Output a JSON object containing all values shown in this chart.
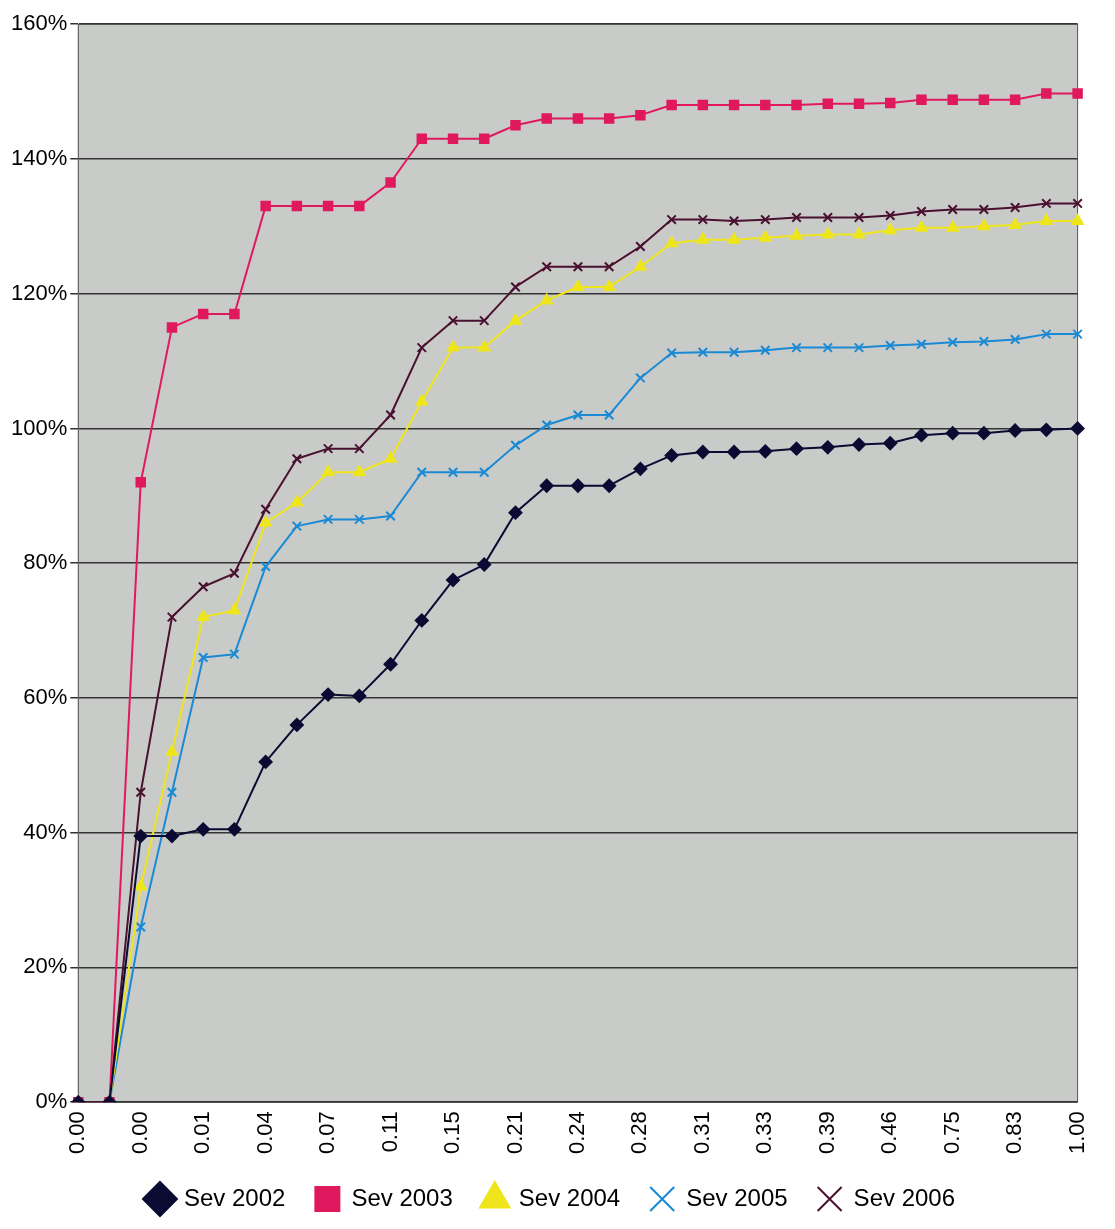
{
  "chart_data": {
    "type": "line",
    "categories": [
      "0.00",
      null,
      "0.00",
      null,
      "0.01",
      null,
      "0.04",
      null,
      "0.07",
      null,
      "0.11",
      null,
      "0.15",
      null,
      "0.21",
      null,
      "0.24",
      null,
      "0.28",
      null,
      "0.31",
      null,
      "0.33",
      null,
      "0.39",
      null,
      "0.46",
      null,
      "0.75",
      null,
      "0.83",
      null,
      "1.00"
    ],
    "series": [
      {
        "name": "Sev 2002",
        "color": "#0a0a33",
        "marker": "diamond",
        "values": [
          0,
          0,
          39.5,
          39.5,
          40.5,
          40.5,
          50.5,
          56,
          60.5,
          60.3,
          65,
          71.5,
          77.5,
          79.8,
          87.5,
          91.5,
          91.5,
          91.5,
          94,
          96,
          96.5,
          96.5,
          96.6,
          97,
          97.2,
          97.6,
          97.8,
          99,
          99.3,
          99.3,
          99.7,
          99.8,
          100
        ]
      },
      {
        "name": "Sev 2003",
        "color": "#e0195f",
        "marker": "square",
        "values": [
          0,
          0,
          92,
          115,
          117,
          117,
          133,
          133,
          133,
          133,
          136.5,
          143,
          143,
          143,
          145,
          146,
          146,
          146,
          146.5,
          148,
          148,
          148,
          148,
          148,
          148.2,
          148.2,
          148.3,
          148.8,
          148.8,
          148.8,
          148.8,
          149.7,
          149.7
        ]
      },
      {
        "name": "Sev 2004",
        "color": "#eee61a",
        "marker": "triangle",
        "values": [
          0,
          0,
          32,
          52,
          72,
          73,
          86,
          89,
          93.5,
          93.5,
          95.5,
          104,
          112,
          112,
          116,
          119,
          121,
          121,
          124,
          127.5,
          128,
          128,
          128.3,
          128.6,
          128.8,
          128.8,
          129.4,
          129.8,
          129.8,
          130,
          130.2,
          130.8,
          130.8
        ]
      },
      {
        "name": "Sev 2005",
        "color": "#1a8ad4",
        "marker": "cross",
        "values": [
          0,
          0,
          26,
          46,
          66,
          66.5,
          79.5,
          85.5,
          86.5,
          86.5,
          87,
          93.5,
          93.5,
          93.5,
          97.5,
          100.5,
          102,
          102,
          107.5,
          111.2,
          111.3,
          111.3,
          111.6,
          112,
          112,
          112,
          112.3,
          112.5,
          112.8,
          112.9,
          113.2,
          114,
          114
        ]
      },
      {
        "name": "Sev 2006",
        "color": "#4a1030",
        "marker": "cross",
        "values": [
          0,
          0,
          46,
          72,
          76.5,
          78.5,
          88,
          95.5,
          97,
          97,
          102,
          112,
          116,
          116,
          121,
          124,
          124,
          124,
          127,
          131,
          131,
          130.8,
          131,
          131.3,
          131.3,
          131.3,
          131.6,
          132.2,
          132.5,
          132.5,
          132.8,
          133.4,
          133.4
        ]
      }
    ],
    "ylim": [
      0,
      160
    ],
    "yticks": [
      {
        "value": 0,
        "label": "0%"
      },
      {
        "value": 20,
        "label": "20%"
      },
      {
        "value": 40,
        "label": "40%"
      },
      {
        "value": 60,
        "label": "60%"
      },
      {
        "value": 80,
        "label": "80%"
      },
      {
        "value": 100,
        "label": "100%"
      },
      {
        "value": 120,
        "label": "120%"
      },
      {
        "value": 140,
        "label": "140%"
      },
      {
        "value": 160,
        "label": "160%"
      }
    ],
    "grid": "y",
    "legend": "bottom",
    "line_style": "solid"
  }
}
